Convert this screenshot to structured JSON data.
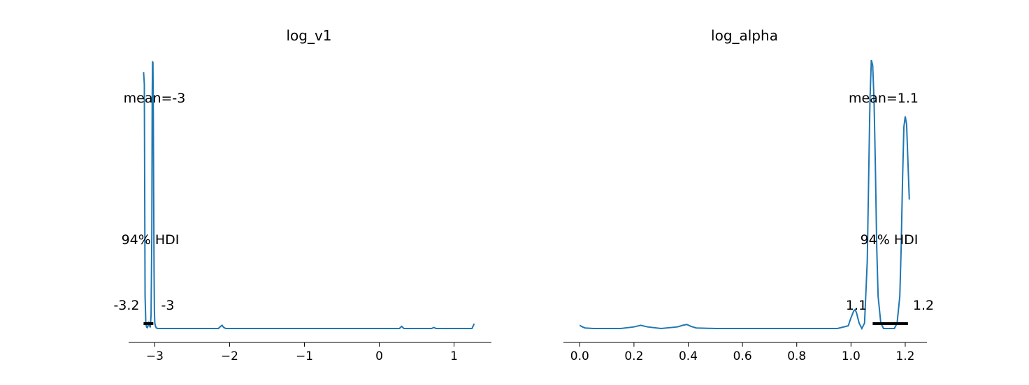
{
  "chart_data": [
    {
      "type": "line",
      "title": "log_v1",
      "xlabel": "",
      "ylabel": "",
      "xlim": [
        -3.35,
        1.5
      ],
      "ylim": [
        0,
        1.0
      ],
      "xticks": [
        -3,
        -2,
        -1,
        0,
        1
      ],
      "xtick_labels": [
        "−3",
        "−2",
        "−1",
        "0",
        "1"
      ],
      "grid": false,
      "line_color": "#1f77b4",
      "series": [
        {
          "x": [
            -3.15,
            -3.14,
            -3.13,
            -3.12,
            -3.11,
            -3.1,
            -3.09,
            -3.08,
            -3.07,
            -3.06,
            -3.05,
            -3.04,
            -3.035,
            -3.03,
            -3.025,
            -3.02,
            -3.015,
            -3.01,
            -3.005,
            -3.0,
            -2.99,
            -2.98,
            -2.96,
            -2.9,
            -2.5,
            -2.15,
            -2.12,
            -2.1,
            -2.08,
            -2.05,
            -1.5,
            -1.0,
            -0.5,
            0.0,
            0.27,
            0.3,
            0.33,
            0.5,
            0.7,
            0.73,
            0.76,
            1.0,
            1.24,
            1.27
          ],
          "y": [
            0.955,
            0.91,
            0.12,
            0.02,
            0.005,
            0.003,
            0.01,
            0.02,
            0.01,
            0.004,
            0.05,
            0.35,
            0.85,
            0.995,
            0.99,
            0.8,
            0.5,
            0.22,
            0.06,
            0.02,
            0.008,
            0.002,
            0.0,
            0.0,
            0.0,
            0.0,
            0.008,
            0.012,
            0.004,
            0.0,
            0.0,
            0.0,
            0.0,
            0.0,
            0.0,
            0.008,
            0.0,
            0.0,
            0.0,
            0.004,
            0.0,
            0.0,
            0.0,
            0.018
          ]
        }
      ],
      "annotations": {
        "mean_label": "mean=-3",
        "hdi_label": "94% HDI",
        "hdi_low_label": "-3.2",
        "hdi_high_label": "-3"
      },
      "hdi": [
        -3.15,
        -3.02
      ]
    },
    {
      "type": "line",
      "title": "log_alpha",
      "xlabel": "",
      "ylabel": "",
      "xlim": [
        -0.06,
        1.28
      ],
      "ylim": [
        0,
        1.0
      ],
      "xticks": [
        0.0,
        0.2,
        0.4,
        0.6,
        0.8,
        1.0,
        1.2
      ],
      "xtick_labels": [
        "0.0",
        "0.2",
        "0.4",
        "0.6",
        "0.8",
        "1.0",
        "1.2"
      ],
      "grid": false,
      "line_color": "#1f77b4",
      "series": [
        {
          "x": [
            0.0,
            0.01,
            0.02,
            0.05,
            0.15,
            0.2,
            0.225,
            0.25,
            0.3,
            0.36,
            0.38,
            0.395,
            0.41,
            0.43,
            0.5,
            0.8,
            0.95,
            0.99,
            1.0,
            1.01,
            1.015,
            1.02,
            1.03,
            1.04,
            1.05,
            1.06,
            1.065,
            1.07,
            1.075,
            1.08,
            1.085,
            1.09,
            1.095,
            1.1,
            1.11,
            1.12,
            1.14,
            1.16,
            1.17,
            1.18,
            1.185,
            1.19,
            1.195,
            1.2,
            1.205,
            1.21,
            1.215
          ],
          "y": [
            0.012,
            0.006,
            0.002,
            0.0,
            0.0,
            0.006,
            0.012,
            0.006,
            0.0,
            0.006,
            0.012,
            0.015,
            0.008,
            0.002,
            0.0,
            0.0,
            0.0,
            0.01,
            0.04,
            0.065,
            0.07,
            0.06,
            0.02,
            0.0,
            0.02,
            0.25,
            0.55,
            0.85,
            1.0,
            0.98,
            0.85,
            0.6,
            0.3,
            0.12,
            0.02,
            0.0,
            0.0,
            0.0,
            0.02,
            0.12,
            0.3,
            0.55,
            0.75,
            0.79,
            0.76,
            0.62,
            0.48
          ]
        }
      ],
      "annotations": {
        "mean_label": "mean=1.1",
        "hdi_label": "94% HDI",
        "hdi_low_label": "1.1",
        "hdi_high_label": "1.2"
      },
      "hdi": [
        1.08,
        1.21
      ]
    }
  ]
}
